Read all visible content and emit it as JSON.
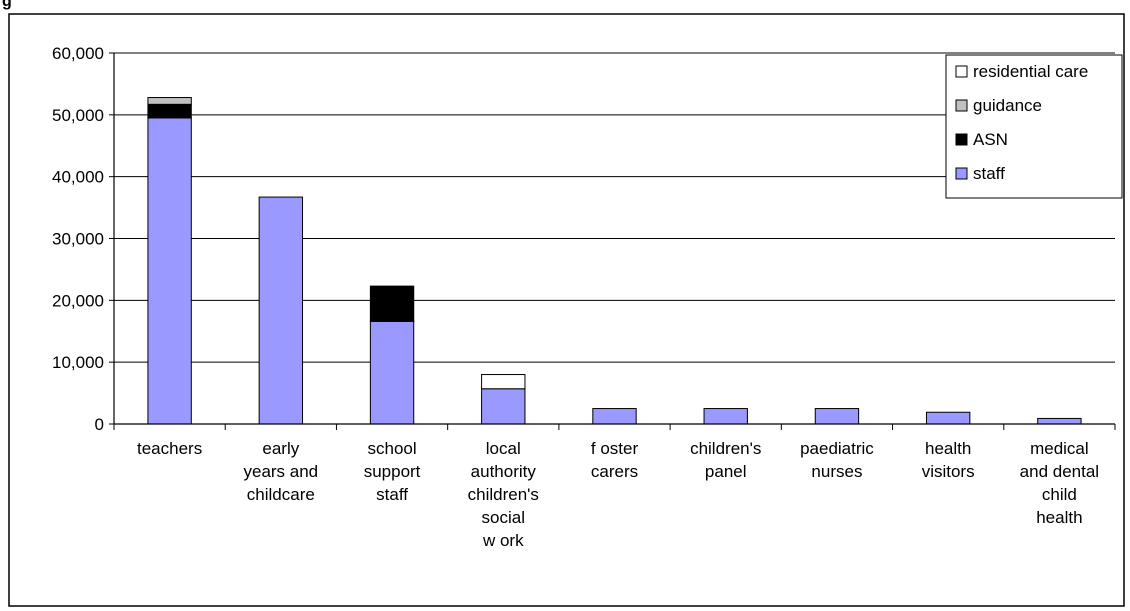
{
  "header": {
    "cropped_title": "g"
  },
  "colors": {
    "staff": "#9999ff",
    "ASN": "#000000",
    "guidance": "#c0c0c0",
    "residential care": "#ffffff"
  },
  "chart_data": {
    "type": "bar",
    "stacked": true,
    "categories": [
      [
        "teachers"
      ],
      [
        "early",
        "years and",
        "childcare"
      ],
      [
        "school",
        "support",
        "staff"
      ],
      [
        "local",
        "authority",
        "children's",
        "social",
        "w ork"
      ],
      [
        "f oster",
        "carers"
      ],
      [
        "children's",
        "panel"
      ],
      [
        "paediatric",
        "nurses"
      ],
      [
        "health",
        "visitors"
      ],
      [
        "medical",
        "and dental",
        "child",
        "health"
      ]
    ],
    "series": [
      {
        "name": "staff",
        "values": [
          49500,
          36700,
          16600,
          5700,
          2500,
          2500,
          2500,
          1900,
          900
        ]
      },
      {
        "name": "ASN",
        "values": [
          2200,
          0,
          5700,
          0,
          0,
          0,
          0,
          0,
          0
        ]
      },
      {
        "name": "guidance",
        "values": [
          1100,
          0,
          0,
          0,
          0,
          0,
          0,
          0,
          0
        ]
      },
      {
        "name": "residential care",
        "values": [
          0,
          0,
          0,
          2300,
          0,
          0,
          0,
          0,
          0
        ]
      }
    ],
    "legend_order": [
      "residential care",
      "guidance",
      "ASN",
      "staff"
    ],
    "legend_position": "top-right",
    "ylim": [
      0,
      60000
    ],
    "yticks": [
      0,
      10000,
      20000,
      30000,
      40000,
      50000,
      60000
    ],
    "ytick_labels": [
      "0",
      "10,000",
      "20,000",
      "30,000",
      "40,000",
      "50,000",
      "60,000"
    ],
    "grid": true
  }
}
